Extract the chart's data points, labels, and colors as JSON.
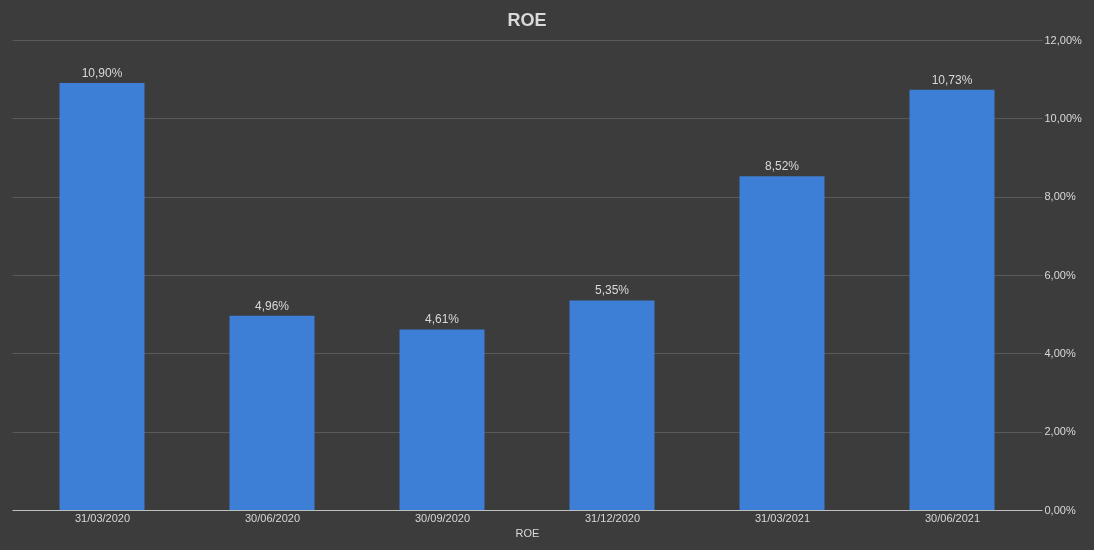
{
  "chart_data": {
    "type": "bar",
    "title": "ROE",
    "xlabel": "ROE",
    "categories": [
      "31/03/2020",
      "30/06/2020",
      "30/09/2020",
      "31/12/2020",
      "31/03/2021",
      "30/06/2021"
    ],
    "values": [
      10.9,
      4.96,
      4.61,
      5.35,
      8.52,
      10.73
    ],
    "value_labels": [
      "10,90%",
      "4,96%",
      "4,61%",
      "5,35%",
      "8,52%",
      "10,73%"
    ],
    "color": "#3d7fd6",
    "ylim": [
      0,
      12
    ],
    "yticks": [
      {
        "value": 0,
        "label": "0,00%"
      },
      {
        "value": 2,
        "label": "2,00%"
      },
      {
        "value": 4,
        "label": "4,00%"
      },
      {
        "value": 6,
        "label": "6,00%"
      },
      {
        "value": 8,
        "label": "8,00%"
      },
      {
        "value": 10,
        "label": "10,00%"
      },
      {
        "value": 12,
        "label": "12,00%"
      }
    ],
    "grid": "y"
  }
}
